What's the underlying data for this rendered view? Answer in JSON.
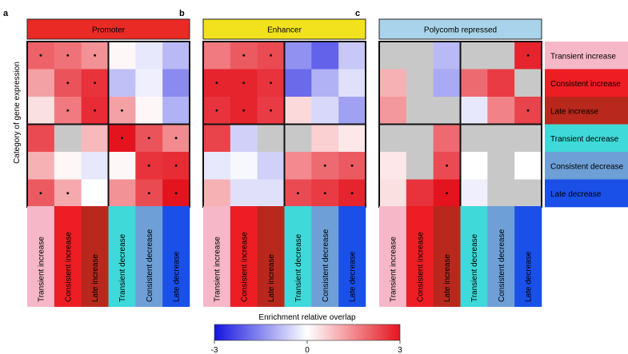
{
  "chart_data": {
    "type": "heatmap",
    "ylabel": "Category of gene expression",
    "row_categories": [
      "Transient increase",
      "Consistent increase",
      "Late increase",
      "Transient decrease",
      "Consistent decrease",
      "Late decrease"
    ],
    "col_categories": [
      "Transient increase",
      "Consistent increase",
      "Late increase",
      "Transient decrease",
      "Consistent decrease",
      "Late decrease"
    ],
    "category_colors": {
      "col": [
        "#f6b8c8",
        "#ee1d23",
        "#b9281c",
        "#3fd9d9",
        "#6e9fd6",
        "#1a4fe8"
      ],
      "row": [
        "#f6b8c8",
        "#ee1d23",
        "#b9281c",
        "#3fd9d9",
        "#6e9fd6",
        "#1a4fe8"
      ]
    },
    "colorbar": {
      "label": "Enrichment relative overlap",
      "min": -3,
      "mid": 0,
      "max": 3,
      "tick_labels": [
        "-3",
        "0",
        "3"
      ],
      "low_color": "#1414e0",
      "mid_color": "#ffffff",
      "high_color": "#e4141e"
    },
    "panels": [
      {
        "letter": "a",
        "title": "Promoter",
        "header_color": "#ea2a25",
        "values": [
          [
            2.0,
            1.8,
            1.4,
            0.1,
            -0.3,
            -0.9
          ],
          [
            1.2,
            2.2,
            2.6,
            -0.8,
            -0.2,
            -1.5
          ],
          [
            0.4,
            1.7,
            2.7,
            1.2,
            0.1,
            -1.0
          ],
          [
            2.3,
            null,
            0.9,
            3.0,
            2.2,
            1.5
          ],
          [
            1.0,
            0.1,
            -0.3,
            0.1,
            2.6,
            2.7
          ],
          [
            2.1,
            1.1,
            0.0,
            1.4,
            2.3,
            3.0
          ]
        ],
        "significant": [
          [
            true,
            true,
            true,
            false,
            false,
            false
          ],
          [
            false,
            true,
            true,
            false,
            false,
            false
          ],
          [
            false,
            true,
            true,
            true,
            false,
            false
          ],
          [
            false,
            false,
            false,
            true,
            true,
            true
          ],
          [
            false,
            false,
            false,
            false,
            true,
            true
          ],
          [
            true,
            true,
            false,
            false,
            true,
            true
          ]
        ]
      },
      {
        "letter": "b",
        "title": "Enhancer",
        "header_color": "#f2e21e",
        "values": [
          [
            1.7,
            2.1,
            2.3,
            -1.4,
            -2.0,
            -0.7
          ],
          [
            2.8,
            2.8,
            2.6,
            -1.9,
            -1.0,
            -0.4
          ],
          [
            2.6,
            2.8,
            2.5,
            0.5,
            -0.5,
            -1.2
          ],
          [
            2.4,
            -0.6,
            null,
            null,
            0.6,
            0.3
          ],
          [
            -0.3,
            -0.1,
            -0.6,
            1.5,
            1.9,
            2.1
          ],
          [
            1.0,
            -0.4,
            -0.4,
            2.3,
            2.5,
            2.8
          ]
        ],
        "significant": [
          [
            false,
            true,
            true,
            false,
            false,
            false
          ],
          [
            true,
            true,
            true,
            false,
            false,
            false
          ],
          [
            true,
            true,
            true,
            false,
            false,
            false
          ],
          [
            false,
            false,
            false,
            false,
            false,
            false
          ],
          [
            false,
            false,
            false,
            false,
            true,
            true
          ],
          [
            false,
            false,
            false,
            true,
            true,
            true
          ]
        ]
      },
      {
        "letter": "c",
        "title": "Polycomb repressed",
        "header_color": "#a9d3ea",
        "values": [
          [
            null,
            null,
            -0.9,
            null,
            null,
            2.8
          ],
          [
            1.0,
            null,
            -1.1,
            1.9,
            2.5,
            null
          ],
          [
            1.3,
            null,
            null,
            -0.3,
            1.6,
            2.4
          ],
          [
            null,
            null,
            1.9,
            null,
            null,
            null
          ],
          [
            0.3,
            null,
            2.3,
            0.0,
            null,
            0.0
          ],
          [
            0.4,
            2.6,
            3.0,
            -0.2,
            null,
            null
          ]
        ],
        "significant": [
          [
            false,
            false,
            false,
            false,
            false,
            true
          ],
          [
            false,
            false,
            false,
            false,
            false,
            false
          ],
          [
            false,
            false,
            false,
            false,
            false,
            true
          ],
          [
            false,
            false,
            false,
            false,
            false,
            false
          ],
          [
            false,
            false,
            true,
            false,
            false,
            false
          ],
          [
            false,
            false,
            true,
            false,
            false,
            false
          ]
        ]
      }
    ]
  }
}
